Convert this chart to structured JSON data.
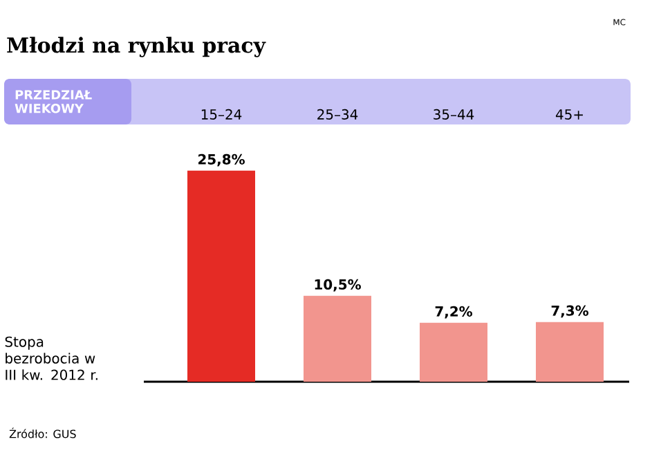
{
  "chart_data": {
    "type": "bar",
    "title": "Młodzi na rynku pracy",
    "xlabel": "PRZEDZIAŁ WIEKOWY",
    "ylabel": "Stopa bezrobocia w III kw. 2012 r.",
    "categories": [
      "15–24",
      "25–34",
      "35–44",
      "45+"
    ],
    "values": [
      25.8,
      10.5,
      7.2,
      7.3
    ],
    "value_labels": [
      "25,8%",
      "10,5%",
      "7,2%",
      "7,3%"
    ],
    "colors": [
      "#e52b25",
      "#f2958e",
      "#f2958e",
      "#f2958e"
    ],
    "annotations": [
      "MC",
      "Źródło: GUS"
    ]
  }
}
